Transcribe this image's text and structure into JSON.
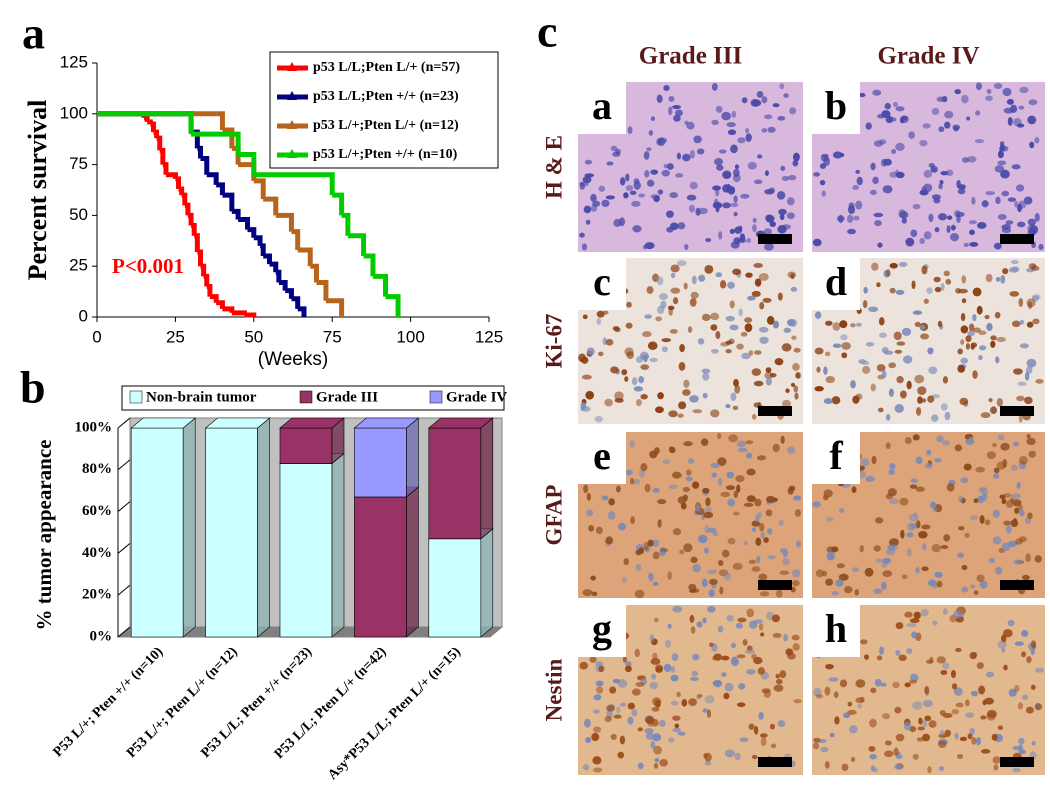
{
  "chart_data": [
    {
      "type": "step",
      "panel_label": "a",
      "y_label": "Percent survival",
      "x_label": "(Weeks)",
      "annotation": "P<0.001",
      "xlim": [
        0,
        125
      ],
      "ylim": [
        0,
        125
      ],
      "xticks": [
        0,
        25,
        50,
        75,
        100,
        125
      ],
      "yticks": [
        0,
        25,
        50,
        75,
        100,
        125
      ],
      "series": [
        {
          "name": "p53 L/L;Pten L/+ (n=57)",
          "color": "#ff0000",
          "x": [
            0,
            14,
            15,
            16,
            17,
            18,
            19,
            20,
            21,
            22,
            25,
            26,
            27,
            28,
            29,
            30,
            31,
            32,
            33,
            34,
            35,
            36,
            38,
            40,
            43,
            47,
            50
          ],
          "values": [
            100,
            100,
            98,
            96,
            95,
            91,
            88,
            82,
            75,
            70,
            68,
            63,
            60,
            55,
            50,
            45,
            40,
            32,
            25,
            20,
            15,
            10,
            7,
            4,
            2,
            1,
            0
          ]
        },
        {
          "name": "p53 L/L;Pten +/+ (n=23)",
          "color": "#000080",
          "x": [
            0,
            27,
            30,
            32,
            33,
            35,
            38,
            40,
            43,
            45,
            48,
            50,
            52,
            53,
            55,
            57,
            58,
            60,
            62,
            64,
            66
          ],
          "values": [
            100,
            100,
            91,
            83,
            78,
            70,
            65,
            60,
            52,
            48,
            43,
            39,
            35,
            30,
            26,
            22,
            17,
            13,
            9,
            4,
            0
          ]
        },
        {
          "name": "p53 L/+;Pten L/+ (n=12)",
          "color": "#b8651c",
          "x": [
            0,
            38,
            40,
            43,
            45,
            50,
            53,
            57,
            62,
            64,
            68,
            70,
            73,
            78
          ],
          "values": [
            100,
            100,
            92,
            83,
            75,
            67,
            58,
            50,
            42,
            33,
            25,
            17,
            8,
            0
          ]
        },
        {
          "name": "p53 L/+;Pten +/+ (n=10)",
          "color": "#00cc00",
          "x": [
            0,
            28,
            30,
            45,
            50,
            75,
            78,
            80,
            85,
            88,
            92,
            96
          ],
          "values": [
            100,
            100,
            90,
            80,
            70,
            60,
            50,
            40,
            30,
            20,
            10,
            0
          ]
        }
      ]
    },
    {
      "type": "stacked_bar",
      "panel_label": "b",
      "y_label": "% tumor appearance",
      "categories": [
        "P53 L/+; Pten +/+ (n=10)",
        "P53 L/+; Pten L/+ (n=12)",
        "P53 L/L; Pten +/+ (n=23)",
        "P53 L/L; Pten L/+ (n=42)",
        "Asy*P53 L/L; Pten L/+ (n=15)"
      ],
      "ylim": [
        0,
        100
      ],
      "yticks": [
        {
          "value": 0,
          "label": "0%"
        },
        {
          "value": 20,
          "label": "20%"
        },
        {
          "value": 40,
          "label": "40%"
        },
        {
          "value": 60,
          "label": "60%"
        },
        {
          "value": 80,
          "label": "80%"
        },
        {
          "value": 100,
          "label": "100%"
        }
      ],
      "series": [
        {
          "name": "Non-brain tumor",
          "color": "#ccffff",
          "values": [
            100,
            100,
            83,
            0,
            47
          ]
        },
        {
          "name": "Grade III",
          "color": "#993366",
          "values": [
            0,
            0,
            17,
            67,
            53
          ]
        },
        {
          "name": "Grade IV",
          "color": "#9999ff",
          "values": [
            0,
            0,
            0,
            33,
            0
          ]
        }
      ]
    }
  ],
  "panel_c": {
    "panel_label": "c",
    "columns": [
      "Grade III",
      "Grade IV"
    ],
    "rows": [
      "H & E",
      "Ki-67",
      "GFAP",
      "Nestin"
    ],
    "images": [
      [
        "a",
        "b"
      ],
      [
        "c",
        "d"
      ],
      [
        "e",
        "f"
      ],
      [
        "g",
        "h"
      ]
    ]
  }
}
